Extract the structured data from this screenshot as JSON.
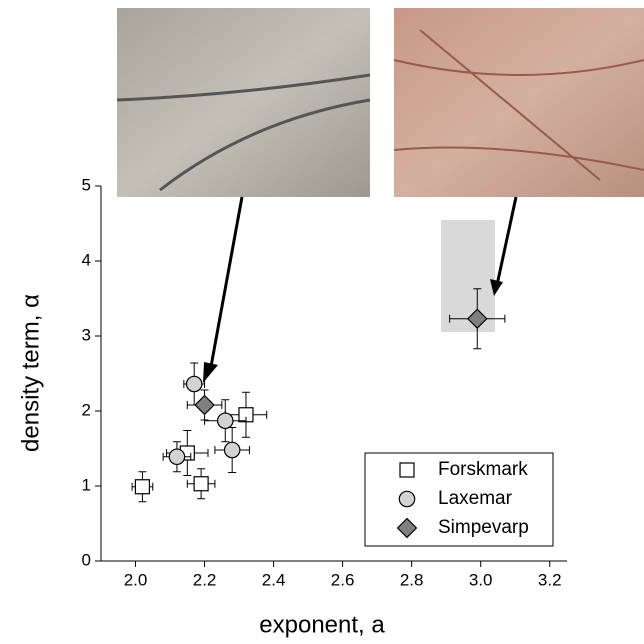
{
  "chart_data": {
    "type": "scatter",
    "xlabel": "exponent, a",
    "ylabel": "density term, α",
    "xlim": [
      1.9,
      3.25
    ],
    "xticks": [
      2.0,
      2.2,
      2.4,
      2.6,
      2.8,
      3.0,
      3.2
    ],
    "ylim": [
      0,
      5
    ],
    "yticks": [
      0,
      1,
      2,
      3,
      4,
      5
    ],
    "series": [
      {
        "name": "Forskmark",
        "color": "#ffffff",
        "marker": "square",
        "x": [
          2.02,
          2.15,
          2.19,
          2.32
        ],
        "values": [
          0.99,
          1.44,
          1.03,
          1.95
        ],
        "xerr": [
          0.03,
          0.06,
          0.04,
          0.06
        ],
        "yerr": [
          0.2,
          0.3,
          0.2,
          0.3
        ]
      },
      {
        "name": "Laxemar",
        "color": "#d3d3d3",
        "marker": "circle",
        "x": [
          2.17,
          2.12,
          2.26,
          2.28
        ],
        "values": [
          2.36,
          1.39,
          1.87,
          1.48
        ],
        "xerr": [
          0.03,
          0.04,
          0.06,
          0.05
        ],
        "yerr": [
          0.28,
          0.2,
          0.28,
          0.3
        ]
      },
      {
        "name": "Simpevarp",
        "color": "#808080",
        "marker": "diamond",
        "x": [
          2.2,
          2.99
        ],
        "values": [
          2.08,
          3.23
        ],
        "xerr": [
          0.05,
          0.08
        ],
        "yerr": [
          0.2,
          0.4
        ]
      }
    ]
  }
}
